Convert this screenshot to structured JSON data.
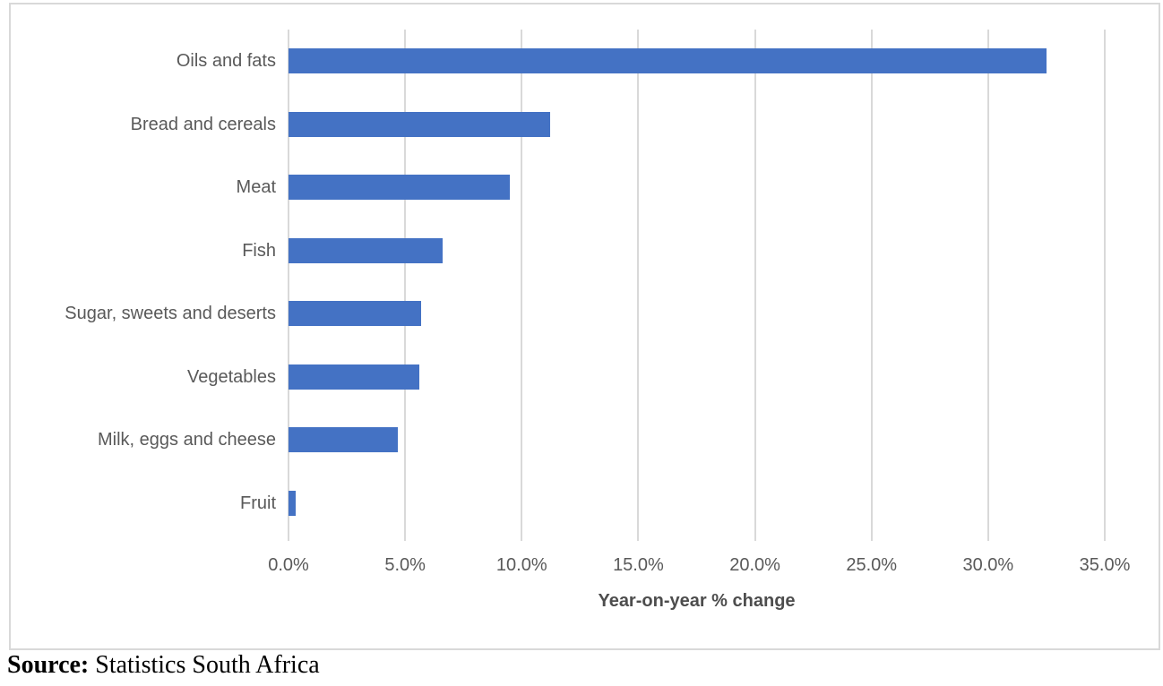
{
  "chart_data": {
    "type": "bar",
    "orientation": "horizontal",
    "title": "",
    "categories": [
      "Oils and fats",
      "Bread and cereals",
      "Meat",
      "Fish",
      "Sugar, sweets and deserts",
      "Vegetables",
      "Milk, eggs and cheese",
      "Fruit"
    ],
    "values": [
      32.5,
      11.2,
      9.5,
      6.6,
      5.7,
      5.6,
      4.7,
      0.3
    ],
    "xlabel": "Year-on-year % change",
    "ylabel": "",
    "xlim": [
      0,
      35
    ],
    "x_tick_values": [
      0,
      5,
      10,
      15,
      20,
      25,
      30,
      35
    ],
    "x_ticks": [
      "0.0%",
      "5.0%",
      "10.0%",
      "15.0%",
      "20.0%",
      "25.0%",
      "30.0%",
      "35.0%"
    ],
    "grid": "vertical",
    "legend": "none"
  },
  "source": {
    "label": "Source:",
    "text": " Statistics South Africa"
  },
  "colors": {
    "bar": "#4472c4",
    "grid": "#d9d9d9",
    "tick_text": "#595959",
    "axis_title_text": "#4d4d4d",
    "frame_border": "#d9d9d9",
    "source_text": "#000000"
  }
}
